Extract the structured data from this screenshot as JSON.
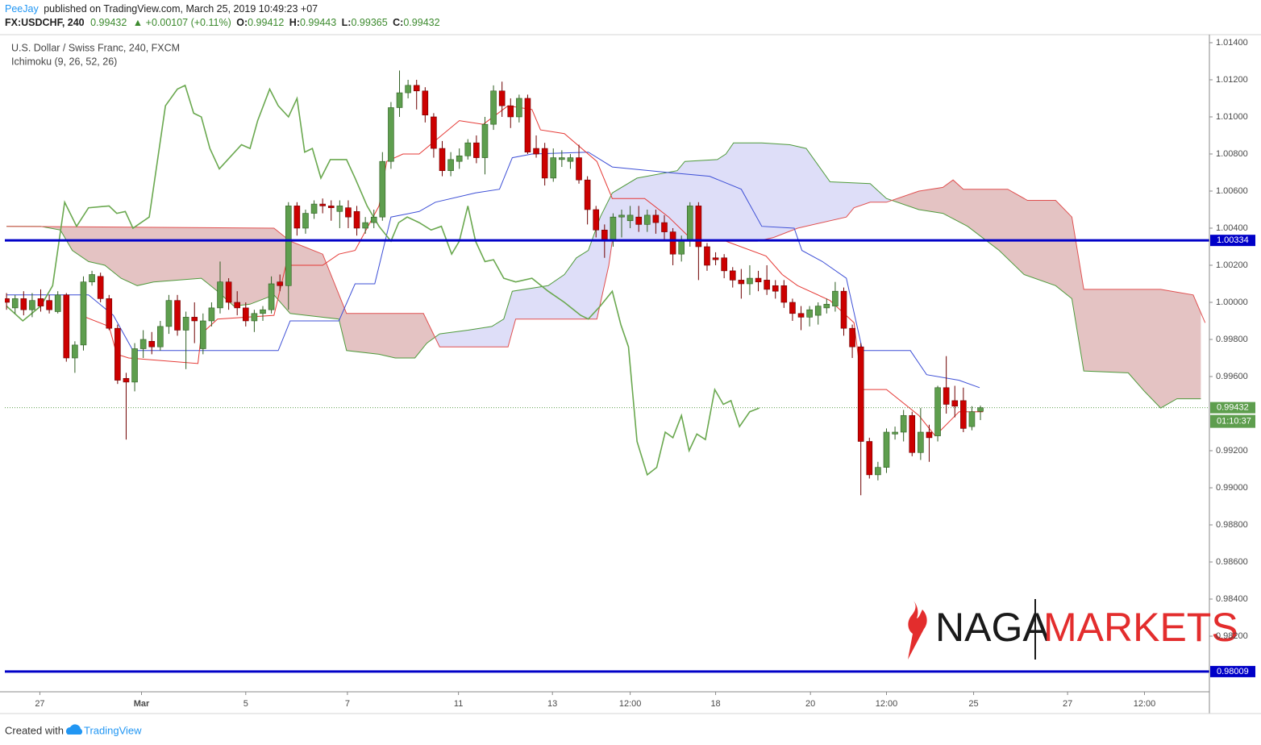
{
  "page": {
    "publisher": "PeeJay",
    "published": "published on TradingView.com, March 25, 2019 10:49:23 +07",
    "symbol": "FX:USDCHF, 240",
    "last": "0.99432",
    "change": "▲ +0.00107 (+0.11%)",
    "o_label": "O:",
    "o": "0.99412",
    "h_label": "H:",
    "h": "0.99443",
    "l_label": "L:",
    "l": "0.99365",
    "c_label": "C:",
    "c": "0.99432",
    "countdown": "01:10:37",
    "created": "Created with",
    "brand": "TradingView",
    "watermark_left": "NAGA",
    "watermark_right": "MARKETS"
  },
  "chart_data": {
    "type": "candlestick",
    "title": "U.S. Dollar / Swiss Franc, 240, FXCM",
    "indicator": "Ichimoku (9, 26, 52, 26)",
    "up_color": "#5e9e4e",
    "down_color": "#cc0000",
    "open": [
      1.0002,
      0.9997,
      1.0002,
      0.9996,
      1.0002,
      1.0001,
      0.9995,
      1.0004,
      0.997,
      0.9977,
      1.0011,
      1.0014,
      1.0002,
      0.9986,
      0.9959,
      0.9957,
      0.9975,
      0.9979,
      0.9976,
      0.9987,
      1.0001,
      0.9985,
      0.9992,
      0.9975,
      0.999,
      0.9997,
      1.0011,
      1.0,
      0.9997,
      0.999,
      0.9994,
      0.9996,
      1.0011,
      1.0009,
      1.0052,
      1.004,
      1.0048,
      1.0053,
      1.0052,
      1.0049,
      1.0051,
      1.0049,
      1.004,
      1.0043,
      1.0046,
      1.0076,
      1.0105,
      1.0113,
      1.0117,
      1.0114,
      1.01,
      1.0083,
      1.0071,
      1.0076,
      1.0079,
      1.0086,
      1.0078,
      1.0096,
      1.0114,
      1.0106,
      1.01,
      1.011,
      1.0083,
      1.0083,
      1.0067,
      1.0077,
      1.0076,
      1.0078,
      1.0066,
      1.005,
      1.0039,
      1.0033,
      1.0046,
      1.0044,
      1.0046,
      1.0042,
      1.0047,
      1.0043,
      1.0038,
      1.0026,
      1.0033,
      1.0052,
      1.003,
      1.0024,
      1.0024,
      1.0017,
      1.0012,
      1.001,
      1.0013,
      1.0012,
      1.0009,
      1.0009,
      1.0,
      0.9994,
      0.9992,
      0.9993,
      0.9997,
      0.9998,
      1.0006,
      0.9986,
      0.9976,
      0.9925,
      0.9907,
      0.9911,
      0.9929,
      0.993,
      0.9939,
      0.9919,
      0.993,
      0.9928,
      0.9954,
      0.9947,
      0.9947,
      0.9933,
      0.99412
    ],
    "high": [
      1.0005,
      1.0004,
      1.0006,
      1.0005,
      1.0007,
      1.0004,
      1.0006,
      1.0005,
      0.9979,
      1.0014,
      1.0017,
      1.0016,
      1.0004,
      0.9988,
      0.9962,
      0.9978,
      0.9985,
      0.9984,
      0.999,
      1.0004,
      1.0004,
      0.9995,
      1.0,
      0.9994,
      1.0,
      1.0022,
      1.0013,
      1.0006,
      1.0,
      0.9996,
      0.9998,
      1.0014,
      1.0015,
      1.0054,
      1.0054,
      1.005,
      1.0055,
      1.0056,
      1.0055,
      1.0055,
      1.0055,
      1.0052,
      1.0046,
      1.005,
      1.0081,
      1.0108,
      1.0125,
      1.012,
      1.012,
      1.0116,
      1.0102,
      1.0087,
      1.0081,
      1.0083,
      1.0088,
      1.009,
      1.01,
      1.0117,
      1.0119,
      1.011,
      1.0112,
      1.0112,
      1.009,
      1.0086,
      1.0083,
      1.0082,
      1.008,
      1.0085,
      1.0068,
      1.0052,
      1.0042,
      1.0048,
      1.005,
      1.0052,
      1.0052,
      1.005,
      1.005,
      1.0047,
      1.004,
      1.0036,
      1.0054,
      1.0054,
      1.0032,
      1.0027,
      1.0026,
      1.0019,
      1.0018,
      1.002,
      1.0017,
      1.002,
      1.0012,
      1.0012,
      1.0002,
      0.9998,
      0.9998,
      1.0,
      1.0002,
      1.0011,
      1.0008,
      0.9988,
      0.9978,
      0.9927,
      0.9914,
      0.9932,
      0.9933,
      0.9942,
      0.9941,
      0.9943,
      0.9934,
      0.9955,
      0.9971,
      0.9955,
      0.9954,
      0.9944,
      0.99443
    ],
    "low": [
      0.9996,
      0.9994,
      0.9993,
      0.9992,
      0.9995,
      0.9994,
      0.9994,
      0.9968,
      0.9962,
      0.9974,
      1.0009,
      1.0,
      0.9985,
      0.9956,
      0.9926,
      0.9952,
      0.997,
      0.9972,
      0.9974,
      0.9983,
      0.9982,
      0.9964,
      0.9978,
      0.9972,
      0.9987,
      0.9994,
      0.9996,
      0.9993,
      0.9987,
      0.9984,
      0.999,
      0.9994,
      1.0006,
      0.9996,
      1.0036,
      1.0037,
      1.0045,
      1.0048,
      1.0044,
      1.004,
      1.004,
      1.0036,
      1.0037,
      1.004,
      1.0044,
      1.0072,
      1.01,
      1.011,
      1.0104,
      1.0097,
      1.0078,
      1.0068,
      1.0068,
      1.0072,
      1.0077,
      1.0075,
      1.0069,
      1.0093,
      1.01,
      1.0094,
      1.0097,
      1.008,
      1.0078,
      1.0063,
      1.0065,
      1.0073,
      1.0072,
      1.0064,
      1.0042,
      1.0035,
      1.0024,
      1.003,
      1.0035,
      1.004,
      1.0038,
      1.0038,
      1.0037,
      1.0034,
      1.002,
      1.0022,
      1.003,
      1.0012,
      1.0017,
      1.002,
      1.0013,
      1.0008,
      1.0002,
      1.0004,
      1.0006,
      1.0004,
      1.0002,
      0.9997,
      0.999,
      0.9985,
      0.9987,
      0.9988,
      0.9994,
      0.9995,
      0.9982,
      0.997,
      0.9896,
      0.9905,
      0.9904,
      0.9908,
      0.9926,
      0.9925,
      0.9917,
      0.9915,
      0.9914,
      0.9925,
      0.994,
      0.9938,
      0.993,
      0.9931,
      0.99365
    ],
    "close": [
      1.0,
      1.0002,
      0.9996,
      1.0001,
      0.9998,
      0.9996,
      1.0004,
      0.997,
      0.9977,
      1.0011,
      1.0015,
      1.0002,
      0.9986,
      0.9958,
      0.9957,
      0.9975,
      0.998,
      0.9976,
      0.9987,
      1.0001,
      0.9985,
      0.9992,
      0.999,
      0.999,
      0.9997,
      1.0011,
      1.0,
      0.9997,
      0.999,
      0.9994,
      0.9996,
      1.001,
      1.0009,
      1.0052,
      1.004,
      1.0048,
      1.0053,
      1.0052,
      1.0051,
      1.0052,
      1.0046,
      1.004,
      1.0043,
      1.0046,
      1.0076,
      1.0105,
      1.0113,
      1.0117,
      1.0114,
      1.0101,
      1.0083,
      1.0071,
      1.0077,
      1.0079,
      1.0086,
      1.0078,
      1.0096,
      1.0114,
      1.0106,
      1.01,
      1.011,
      1.0081,
      1.008,
      1.0067,
      1.0078,
      1.0078,
      1.0078,
      1.0066,
      1.005,
      1.0039,
      1.0033,
      1.0046,
      1.0047,
      1.0047,
      1.0042,
      1.0047,
      1.0043,
      1.0038,
      1.0026,
      1.0033,
      1.0052,
      1.003,
      1.002,
      1.0023,
      1.0017,
      1.0012,
      1.001,
      1.0013,
      1.0011,
      1.0007,
      1.0006,
      1.0,
      0.9994,
      0.9992,
      0.9996,
      0.9998,
      0.9999,
      1.0006,
      0.9986,
      0.9976,
      0.9925,
      0.9907,
      0.9911,
      0.993,
      0.993,
      0.9939,
      0.9919,
      0.993,
      0.9927,
      0.9954,
      0.9945,
      0.9944,
      0.9932,
      0.9941,
      0.99432
    ],
    "tenkan": {
      "color": "#e53935",
      "x": [
        8.7,
        12.0,
        12.9,
        14.3,
        22.4,
        22.8,
        24.7,
        31.3,
        32.7,
        37.0,
        38.9,
        40.8,
        43.6,
        44.5,
        46.4,
        48.3,
        53.0,
        55.8,
        58.7,
        61.5,
        62.5,
        65.3,
        69.1,
        70.9,
        74.7,
        77.5,
        80.4,
        84.2,
        88.9,
        90.8,
        92.6,
        96.4,
        99.2,
        100.2,
        103.0,
        106.8,
        108.7,
        111.5,
        114.3
      ],
      "values": [
        0.9993,
        0.9987,
        0.9972,
        0.997,
        0.9967,
        0.9983,
        0.9991,
        0.9993,
        1.002,
        1.002,
        1.0026,
        1.0028,
        1.0052,
        1.0076,
        1.008,
        1.008,
        1.0098,
        1.0096,
        1.0106,
        1.0104,
        1.0093,
        1.0091,
        1.0076,
        1.0056,
        1.0056,
        1.0046,
        1.0033,
        1.0033,
        1.0025,
        1.0015,
        1.0009,
        1.0001,
        0.9989,
        0.9953,
        0.9953,
        0.9939,
        0.9928,
        0.9941,
        0.9941
      ]
    },
    "kijun": {
      "color": "#3d4fd6",
      "x": [
        0,
        9.6,
        12.5,
        14.8,
        31.8,
        33.2,
        38.9,
        40.8,
        43.1,
        45.0,
        48.3,
        50.2,
        54.9,
        57.7,
        59.2,
        61.5,
        68.1,
        70.9,
        77.5,
        82.3,
        86.0,
        88.4,
        92.2,
        93.1,
        95.5,
        98.3,
        100.2,
        105.8,
        107.7,
        111.5,
        113.9
      ],
      "values": [
        1.0004,
        1.0004,
        0.9993,
        0.9974,
        0.9974,
        0.999,
        0.999,
        1.001,
        1.001,
        1.0046,
        1.0049,
        1.0054,
        1.0059,
        1.0061,
        1.0078,
        1.008,
        1.0081,
        1.0073,
        1.007,
        1.0068,
        1.0061,
        1.0041,
        1.004,
        1.0028,
        1.0022,
        1.0013,
        0.9974,
        0.9974,
        0.9961,
        0.9958,
        0.9954
      ]
    },
    "chikou": {
      "color": "#6aa84f",
      "x": [
        0,
        1.9,
        4.0,
        5.4,
        6.8,
        8.2,
        9.6,
        12.0,
        12.9,
        13.9,
        14.8,
        16.7,
        18.6,
        20.0,
        20.9,
        21.9,
        22.8,
        23.8,
        24.9,
        26.1,
        27.5,
        28.5,
        29.4,
        30.8,
        31.8,
        33.0,
        34.0,
        34.9,
        35.8,
        36.8,
        37.9,
        39.8,
        40.8,
        42.2,
        43.6,
        45.0,
        45.9,
        46.9,
        48.3,
        49.7,
        50.9,
        52.1,
        53.0,
        54.0,
        54.9,
        56.0,
        57.0,
        58.2,
        59.6,
        61.5,
        63.4,
        65.3,
        67.2,
        68.1,
        69.5,
        70.9,
        71.9,
        72.8,
        73.8,
        75.0,
        76.1,
        77.1,
        78.0,
        79.0,
        79.9,
        80.8,
        81.8,
        82.9,
        83.9,
        84.8,
        85.8,
        87.0,
        88.1
      ],
      "values": [
        0.9998,
        0.999,
        0.9998,
        1.0009,
        1.0054,
        1.0041,
        1.0051,
        1.0052,
        1.0048,
        1.0049,
        1.004,
        1.0046,
        1.0106,
        1.0115,
        1.0117,
        1.0102,
        1.01,
        1.0083,
        1.0072,
        1.0078,
        1.0085,
        1.0083,
        1.0098,
        1.0115,
        1.0106,
        1.01,
        1.011,
        1.0081,
        1.0083,
        1.0067,
        1.0077,
        1.0077,
        1.0067,
        1.0052,
        1.0041,
        1.0033,
        1.0043,
        1.0046,
        1.0043,
        1.0039,
        1.0041,
        1.0026,
        1.0033,
        1.0052,
        1.0033,
        1.0022,
        1.0023,
        1.0013,
        1.0011,
        1.0013,
        1.0006,
        1.0,
        0.9993,
        0.9991,
        0.9998,
        1.0006,
        0.9988,
        0.9976,
        0.9925,
        0.9907,
        0.9911,
        0.993,
        0.9927,
        0.9939,
        0.992,
        0.9929,
        0.9926,
        0.9953,
        0.9945,
        0.9947,
        0.9933,
        0.9941,
        0.9943
      ]
    },
    "senkou_a": {
      "color": "#4f9a3c",
      "fill": "#dcdcf8",
      "x": [
        0,
        4.0,
        6.3,
        7.7,
        9.6,
        11.5,
        13.4,
        15.3,
        17.2,
        22.8,
        24.7,
        26.6,
        28.5,
        31.3,
        33.2,
        38.9,
        39.8,
        43.6,
        45.5,
        47.8,
        49.2,
        50.7,
        54.0,
        56.8,
        58.2,
        59.2,
        63.4,
        65.3,
        66.7,
        68.1,
        69.5,
        70.9,
        73.8,
        78.5,
        79.4,
        83.2,
        84.2,
        85.1,
        88.4,
        91.7,
        93.6,
        96.4,
        101.1,
        103.0,
        106.8,
        109.6,
        112.5,
        116.2,
        119.1,
        122.8,
        124.7,
        126.1,
        131.3,
        133.2,
        135.1,
        137.0,
        139.8
      ],
      "values": [
        1.0041,
        1.0041,
        1.0039,
        1.0028,
        1.0022,
        1.002,
        1.0013,
        1.0009,
        1.0011,
        1.0013,
        1.0006,
        0.9998,
        0.9999,
        1.0004,
        0.9994,
        0.9991,
        0.9974,
        0.9972,
        0.997,
        0.997,
        0.9978,
        0.9983,
        0.9985,
        0.9987,
        0.9991,
        1.0006,
        1.0009,
        1.0015,
        1.0024,
        1.0028,
        1.0046,
        1.0059,
        1.0067,
        1.0071,
        1.0076,
        1.0077,
        1.008,
        1.0086,
        1.0086,
        1.0085,
        1.0083,
        1.0065,
        1.0064,
        1.0056,
        1.005,
        1.0048,
        1.0041,
        1.0028,
        1.0015,
        1.0009,
        1.0002,
        0.9963,
        0.9962,
        0.9952,
        0.9943,
        0.9948,
        0.9948
      ]
    },
    "senkou_b": {
      "color": "#e05050",
      "fill": "#dfb8b8",
      "x": [
        0,
        31.3,
        33.2,
        37.0,
        39.8,
        48.8,
        50.7,
        58.7,
        59.6,
        69.1,
        70.5,
        70.9,
        87.9,
        89.8,
        92.6,
        98.3,
        99.2,
        101.1,
        103.0,
        106.8,
        109.6,
        110.8,
        112.0,
        117.2,
        119.5,
        122.8,
        124.7,
        126.1,
        135.1,
        138.9,
        140.3
      ],
      "values": [
        1.0041,
        1.004,
        1.0033,
        1.0026,
        0.9994,
        0.9994,
        0.9976,
        0.9976,
        0.9991,
        0.9991,
        1.002,
        1.0033,
        1.0033,
        1.0035,
        1.004,
        1.0046,
        1.0051,
        1.0054,
        1.0054,
        1.006,
        1.0062,
        1.0066,
        1.0061,
        1.0061,
        1.0055,
        1.0055,
        1.0046,
        1.0007,
        1.0007,
        1.0004,
        0.9989
      ]
    },
    "hlines": [
      {
        "value": 1.00334,
        "color": "#0000c8"
      },
      {
        "value": 0.98009,
        "color": "#0000c8"
      }
    ],
    "last_price": 0.99432,
    "last_color": "#5e9e4e",
    "xlim": [
      -0.2,
      140.8
    ],
    "xticks": [
      {
        "value": 3.9,
        "label": "27"
      },
      {
        "value": 15.8,
        "label": "Mar"
      },
      {
        "value": 28.0,
        "label": "5"
      },
      {
        "value": 39.9,
        "label": "7"
      },
      {
        "value": 52.9,
        "label": "11"
      },
      {
        "value": 63.9,
        "label": "13"
      },
      {
        "value": 73.0,
        "label": "12:00"
      },
      {
        "value": 83.0,
        "label": "18"
      },
      {
        "value": 94.1,
        "label": "20"
      },
      {
        "value": 103.0,
        "label": "12:00"
      },
      {
        "value": 113.2,
        "label": "25"
      },
      {
        "value": 124.2,
        "label": "27"
      },
      {
        "value": 133.2,
        "label": "12:00"
      }
    ],
    "ylim": [
      0.979,
      1.01439
    ],
    "yticks": [
      {
        "value": 1.014,
        "label": "1.01400"
      },
      {
        "value": 1.012,
        "label": "1.01200"
      },
      {
        "value": 1.01,
        "label": "1.01000"
      },
      {
        "value": 1.008,
        "label": "1.00800"
      },
      {
        "value": 1.006,
        "label": "1.00600"
      },
      {
        "value": 1.004,
        "label": "1.00400"
      },
      {
        "value": 1.002,
        "label": "1.00200"
      },
      {
        "value": 1.0,
        "label": "1.00000"
      },
      {
        "value": 0.998,
        "label": "0.99800"
      },
      {
        "value": 0.996,
        "label": "0.99600"
      },
      {
        "value": 0.992,
        "label": "0.99200"
      },
      {
        "value": 0.99,
        "label": "0.99000"
      },
      {
        "value": 0.988,
        "label": "0.98800"
      },
      {
        "value": 0.986,
        "label": "0.98600"
      },
      {
        "value": 0.984,
        "label": "0.98400"
      },
      {
        "value": 0.982,
        "label": "0.98200"
      }
    ],
    "grid": false
  }
}
